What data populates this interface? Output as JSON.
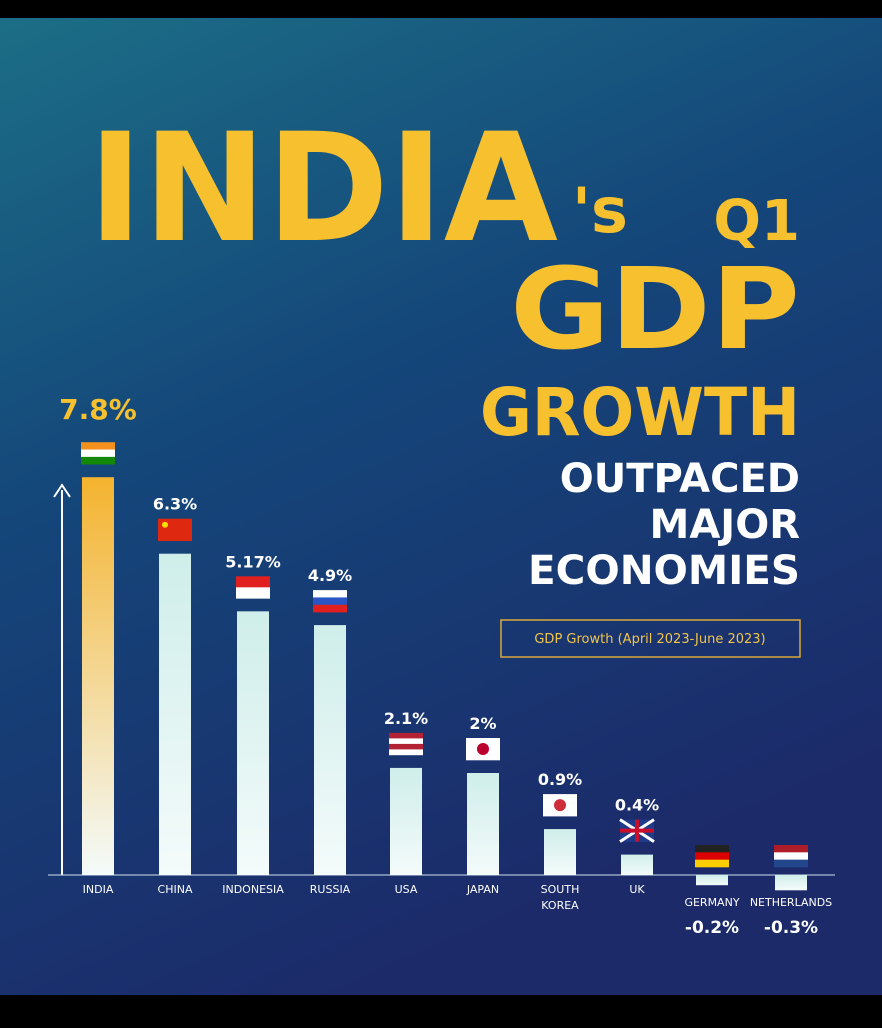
{
  "chart_data": {
    "type": "bar",
    "title": [
      "INDIA",
      "'s",
      "Q1",
      "GDP",
      "GROWTH"
    ],
    "subtitle": [
      "OUTPACED",
      "MAJOR",
      "ECONOMIES"
    ],
    "annotation": "GDP Growth (April 2023-June 2023)",
    "categories": [
      "INDIA",
      "CHINA",
      "INDONESIA",
      "RUSSIA",
      "USA",
      "JAPAN",
      "SOUTH KOREA",
      "UK",
      "GERMANY",
      "NETHERLANDS"
    ],
    "values": [
      7.8,
      6.3,
      5.17,
      4.9,
      2.1,
      2,
      0.9,
      0.4,
      -0.2,
      -0.3
    ],
    "value_labels": [
      "7.8%",
      "6.3%",
      "5.17%",
      "4.9%",
      "2.1%",
      "2%",
      "0.9%",
      "0.4%",
      "-0.2%",
      "-0.3%"
    ],
    "colors": [
      "#f4b32e",
      "#cfeeea",
      "#cfeeea",
      "#cfeeea",
      "#cfeeea",
      "#cfeeea",
      "#cfeeea",
      "#cfeeea",
      "#cfeeea",
      "#cfeeea"
    ]
  }
}
